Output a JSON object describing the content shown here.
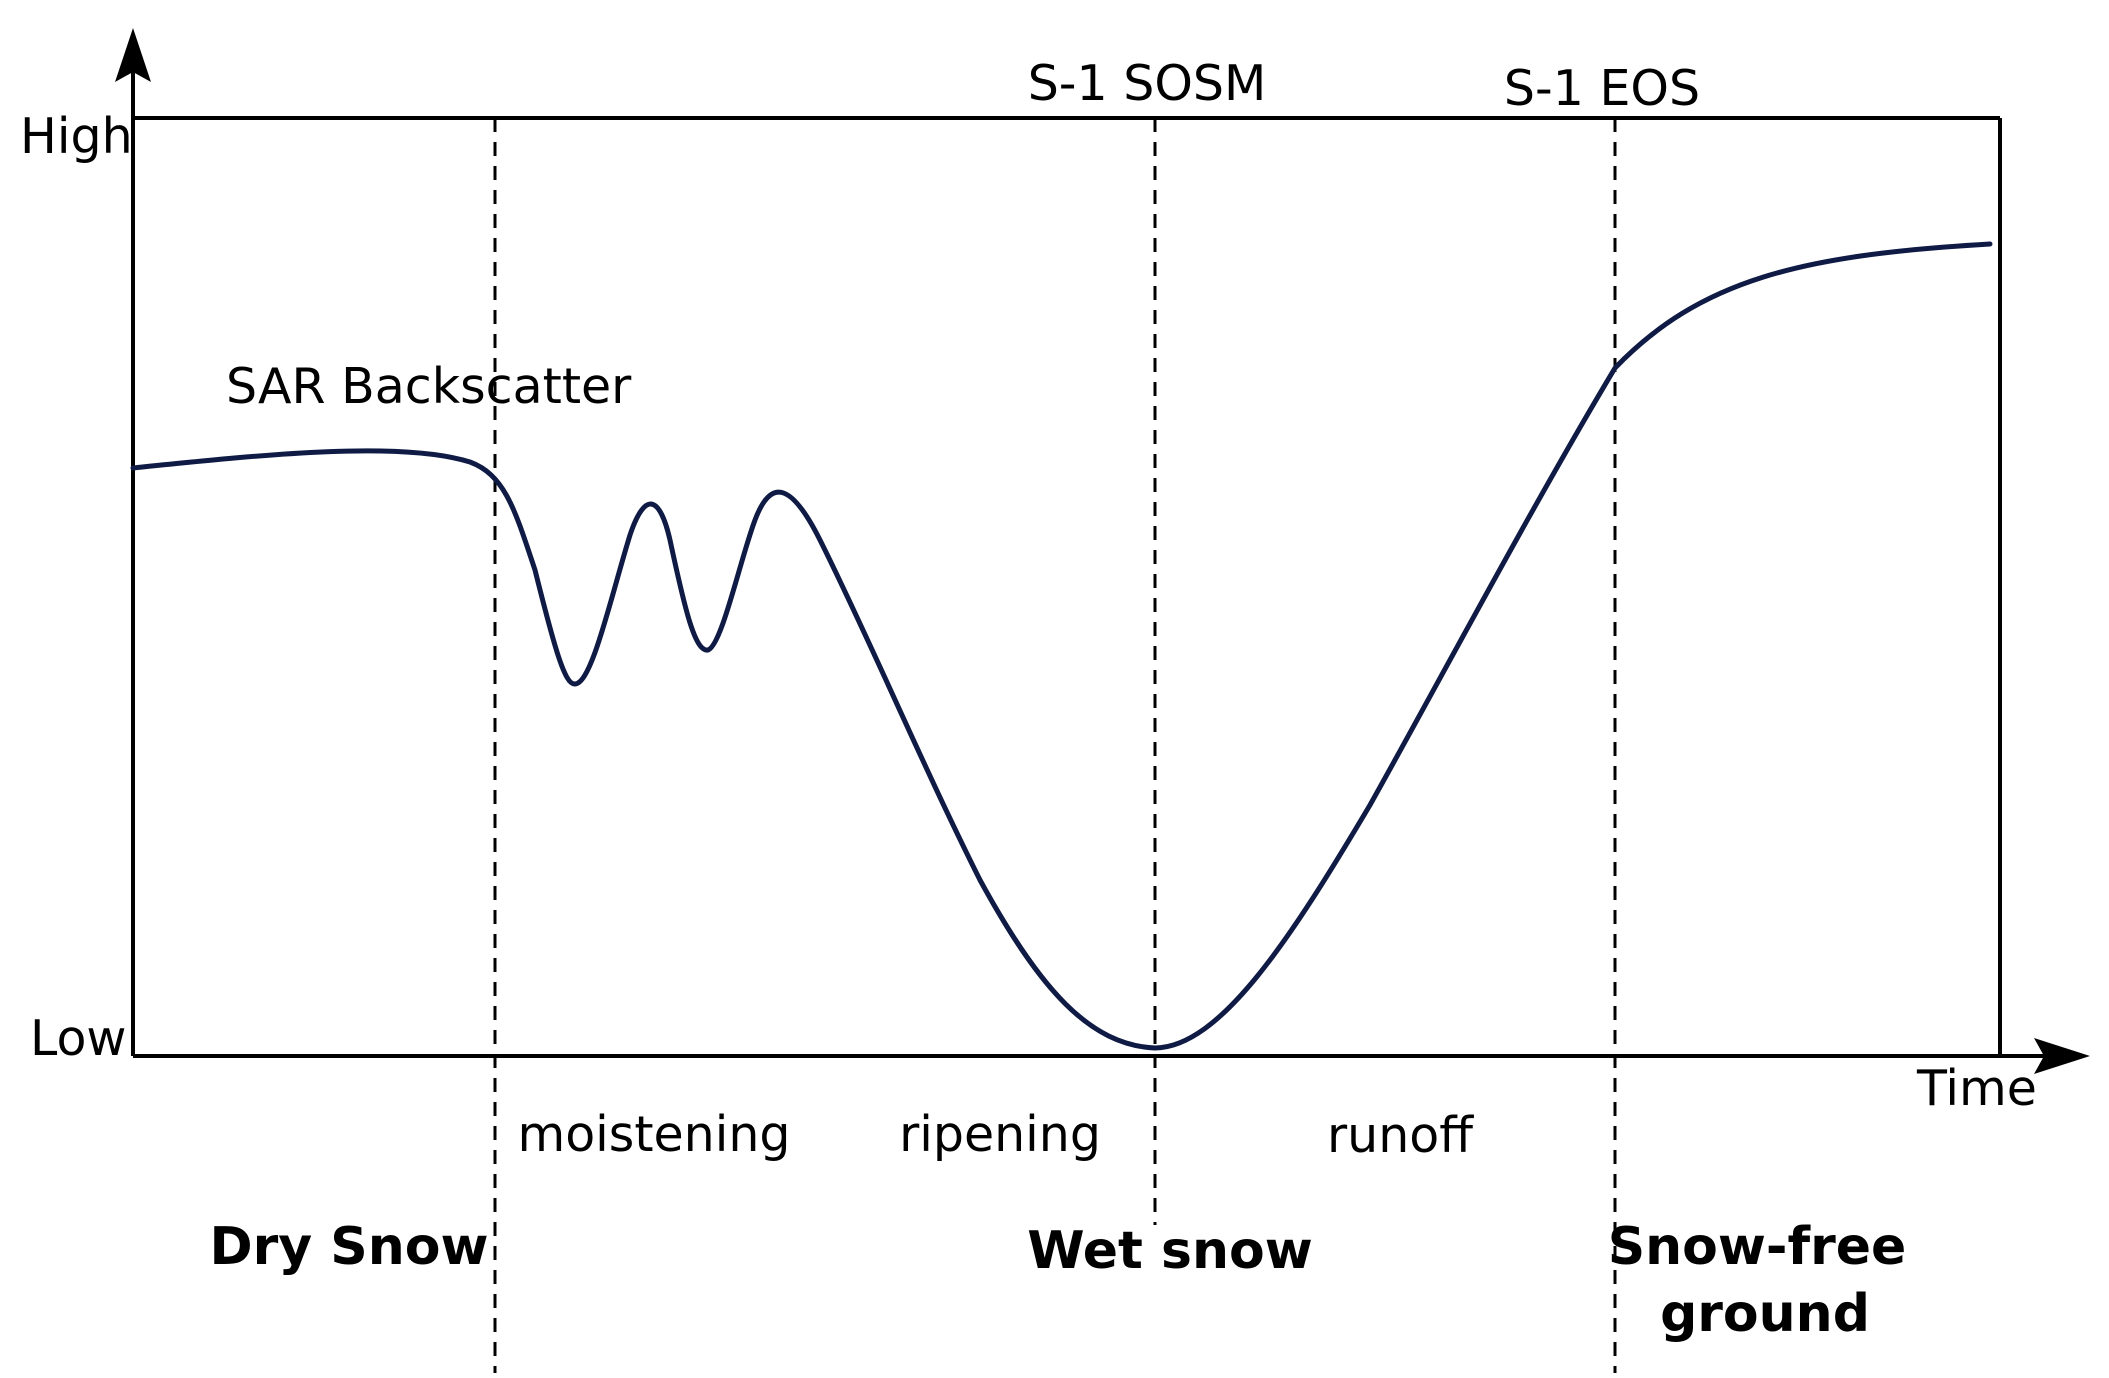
{
  "axes": {
    "y_high": "High",
    "y_low": "Low",
    "x_label": "Time"
  },
  "markers": {
    "sosm": "S-1 SOSM",
    "eos": "S-1 EOS"
  },
  "curve_label": "SAR Backscatter",
  "phases": {
    "moistening": "moistening",
    "ripening": "ripening",
    "runoff": "runoff"
  },
  "states": {
    "dry_snow": "Dry Snow",
    "wet_snow": "Wet snow",
    "snow_free_line1": "Snow-free",
    "snow_free_line2": "ground"
  },
  "colors": {
    "curve": "#0f1b45",
    "frame": "#000000"
  }
}
